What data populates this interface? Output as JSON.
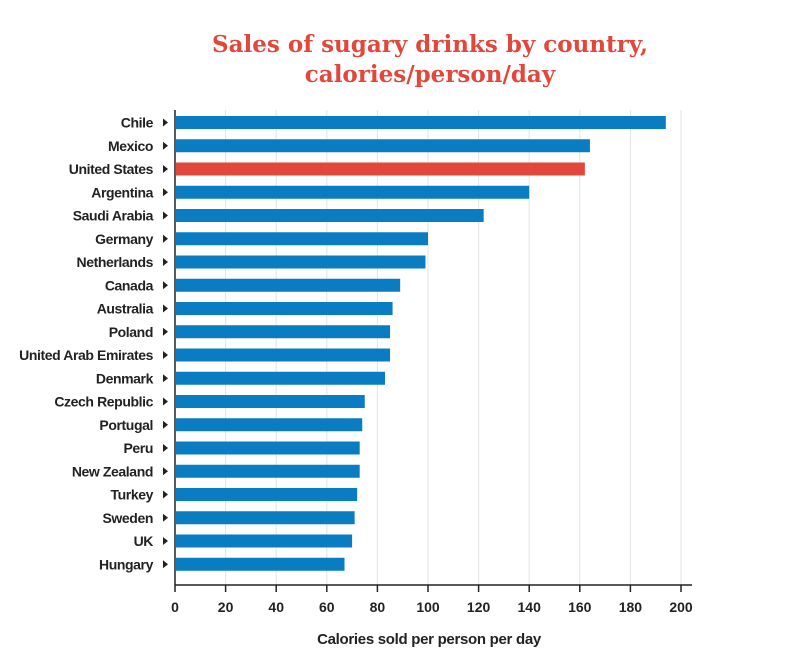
{
  "chart_data": {
    "type": "bar",
    "orientation": "horizontal",
    "title_line1": "Sales of sugary drinks by country,",
    "title_line2": "calories/person/day",
    "xlabel": "Calories sold per person per day",
    "ylabel": "",
    "xlim": [
      0,
      200
    ],
    "xticks": [
      0,
      20,
      40,
      60,
      80,
      100,
      120,
      140,
      160,
      180,
      200
    ],
    "grid": true,
    "categories": [
      "Chile",
      "Mexico",
      "United States",
      "Argentina",
      "Saudi Arabia",
      "Germany",
      "Netherlands",
      "Canada",
      "Australia",
      "Poland",
      "United Arab Emirates",
      "Denmark",
      "Czech Republic",
      "Portugal",
      "Peru",
      "New Zealand",
      "Turkey",
      "Sweden",
      "UK",
      "Hungary"
    ],
    "values": [
      194,
      164,
      162,
      140,
      122,
      100,
      99,
      89,
      86,
      85,
      85,
      83,
      75,
      74,
      73,
      73,
      72,
      71,
      70,
      67
    ],
    "highlight": "United States",
    "colors": {
      "bar": "#0a7dc2",
      "highlight": "#e2473b",
      "title": "#e2473b",
      "grid": "#e3e3e3"
    }
  }
}
